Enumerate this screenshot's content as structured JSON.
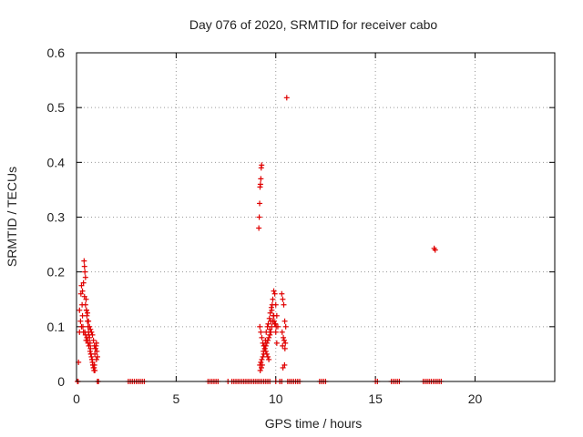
{
  "chart_data": {
    "type": "scatter",
    "title": "Day 076 of 2020, SRMTID for receiver cabo",
    "xlabel": "GPS time / hours",
    "ylabel": "SRMTID / TECUs",
    "xlim": [
      0,
      24
    ],
    "ylim": [
      0,
      0.6
    ],
    "xticks": [
      0,
      5,
      10,
      15,
      20
    ],
    "yticks": [
      0,
      0.1,
      0.2,
      0.3,
      0.4,
      0.5,
      0.6
    ],
    "xtick_labels": [
      "0",
      "5",
      "10",
      "15",
      "20"
    ],
    "ytick_labels": [
      "0",
      "0.1",
      "0.2",
      "0.3",
      "0.4",
      "0.5",
      "0.6"
    ],
    "grid": true,
    "marker": "plus",
    "color": "#e00000",
    "series": [
      {
        "x": [
          0.1,
          0.15,
          0.2,
          0.22,
          0.25,
          0.28,
          0.3,
          0.32,
          0.35,
          0.38,
          0.4,
          0.42,
          0.45,
          0.48,
          0.5,
          0.52,
          0.55,
          0.58,
          0.6,
          0.62,
          0.65,
          0.68,
          0.7,
          0.72,
          0.75,
          0.78,
          0.8,
          0.82,
          0.85,
          0.88,
          0.9,
          0.92,
          0.95,
          0.98,
          1.0,
          1.02,
          1.05,
          0.3,
          0.35,
          0.4,
          0.45,
          0.5,
          0.55,
          0.6,
          0.65,
          0.7,
          0.75,
          0.8,
          0.85,
          0.9,
          0.95,
          1.0,
          0.42,
          0.48,
          0.52,
          0.58,
          0.62,
          0.68,
          0.72,
          0.78,
          0.82,
          0.88,
          0.92,
          0.15,
          0.25,
          0.45,
          0.55
        ],
        "y": [
          0.035,
          0.09,
          0.11,
          0.16,
          0.175,
          0.14,
          0.12,
          0.1,
          0.09,
          0.22,
          0.21,
          0.2,
          0.19,
          0.15,
          0.13,
          0.12,
          0.11,
          0.1,
          0.09,
          0.085,
          0.08,
          0.07,
          0.06,
          0.05,
          0.045,
          0.04,
          0.035,
          0.03,
          0.025,
          0.02,
          0.03,
          0.05,
          0.06,
          0.065,
          0.07,
          0.055,
          0.045,
          0.165,
          0.18,
          0.155,
          0.14,
          0.13,
          0.125,
          0.11,
          0.1,
          0.095,
          0.09,
          0.085,
          0.075,
          0.065,
          0.06,
          0.04,
          0.09,
          0.075,
          0.08,
          0.07,
          0.065,
          0.055,
          0.05,
          0.04,
          0.03,
          0.025,
          0.02,
          0.13,
          0.1,
          0.085,
          0.075
        ]
      },
      {
        "x": [
          9.2,
          9.25,
          9.3,
          9.35,
          9.4,
          9.45,
          9.5,
          9.55,
          9.6,
          9.65,
          9.7,
          9.75,
          9.8,
          9.85,
          9.9,
          9.95,
          10.0,
          10.05,
          10.1,
          9.2,
          9.25,
          9.3,
          9.35,
          9.4,
          9.45,
          9.5,
          9.55,
          9.6,
          9.65,
          9.7,
          9.75,
          9.8,
          9.85,
          9.9,
          9.95,
          10.0,
          10.05,
          9.22,
          9.28,
          9.32,
          9.38,
          9.42,
          9.48,
          9.52,
          9.58,
          9.62,
          9.68,
          9.72,
          9.78,
          9.82,
          9.88,
          9.92,
          9.98,
          10.02,
          10.3,
          10.35,
          10.4,
          10.45,
          10.5,
          10.32,
          10.38,
          10.42,
          10.48,
          10.34,
          10.44,
          10.36,
          10.46,
          9.15,
          9.17,
          9.19,
          9.21,
          9.23,
          9.25,
          9.27,
          9.29
        ],
        "y": [
          0.1,
          0.09,
          0.08,
          0.07,
          0.065,
          0.06,
          0.055,
          0.05,
          0.045,
          0.04,
          0.095,
          0.11,
          0.13,
          0.15,
          0.165,
          0.16,
          0.14,
          0.12,
          0.1,
          0.03,
          0.035,
          0.04,
          0.045,
          0.05,
          0.06,
          0.065,
          0.07,
          0.075,
          0.08,
          0.085,
          0.09,
          0.1,
          0.11,
          0.12,
          0.105,
          0.09,
          0.07,
          0.02,
          0.025,
          0.03,
          0.055,
          0.065,
          0.075,
          0.09,
          0.1,
          0.105,
          0.115,
          0.125,
          0.135,
          0.14,
          0.12,
          0.11,
          0.105,
          0.1,
          0.16,
          0.15,
          0.14,
          0.11,
          0.1,
          0.09,
          0.08,
          0.075,
          0.07,
          0.065,
          0.03,
          0.025,
          0.06,
          0.28,
          0.3,
          0.325,
          0.355,
          0.36,
          0.37,
          0.39,
          0.395
        ]
      },
      {
        "x": [
          10.55,
          17.95,
          18.0
        ],
        "y": [
          0.518,
          0.243,
          0.24
        ]
      },
      {
        "x": [
          0.05,
          0.08,
          1.05,
          1.1,
          2.6,
          2.7,
          2.8,
          2.9,
          3.0,
          3.1,
          3.2,
          3.3,
          3.4,
          6.6,
          6.7,
          6.8,
          6.9,
          7.0,
          7.1,
          7.6,
          7.8,
          7.9,
          8.0,
          8.1,
          8.2,
          8.3,
          8.4,
          8.5,
          8.6,
          8.7,
          8.8,
          8.9,
          9.0,
          9.1,
          9.2,
          9.3,
          9.4,
          9.5,
          9.6,
          9.7,
          10.0,
          10.2,
          10.3,
          10.6,
          10.7,
          10.8,
          10.9,
          11.0,
          11.1,
          11.2,
          12.2,
          12.3,
          12.4,
          12.5,
          15.0,
          15.1,
          15.8,
          15.9,
          16.0,
          16.1,
          16.2,
          17.4,
          17.5,
          17.6,
          17.7,
          17.8,
          17.9,
          18.0,
          18.1,
          18.2,
          18.3
        ],
        "y": [
          0,
          0,
          0,
          0,
          0,
          0,
          0,
          0,
          0,
          0,
          0,
          0,
          0,
          0,
          0,
          0,
          0,
          0,
          0,
          0,
          0,
          0,
          0,
          0,
          0,
          0,
          0,
          0,
          0,
          0,
          0,
          0,
          0,
          0,
          0,
          0,
          0,
          0,
          0,
          0,
          0,
          0,
          0,
          0,
          0,
          0,
          0,
          0,
          0,
          0,
          0,
          0,
          0,
          0,
          0,
          0,
          0,
          0,
          0,
          0,
          0,
          0,
          0,
          0,
          0,
          0,
          0,
          0,
          0,
          0,
          0
        ]
      }
    ]
  }
}
